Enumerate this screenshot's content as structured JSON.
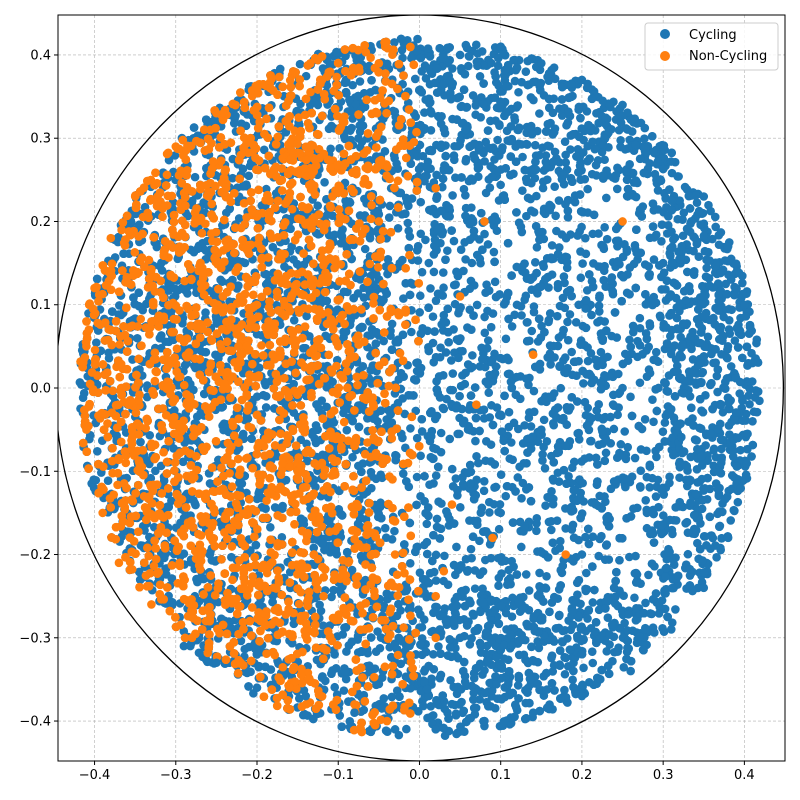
{
  "chart_data": {
    "type": "scatter",
    "title": "",
    "xlabel": "",
    "ylabel": "",
    "xlim": [
      -0.445,
      0.45
    ],
    "ylim": [
      -0.448,
      0.448
    ],
    "grid": true,
    "grid_style": "dashed",
    "legend_placement": "top-right",
    "x_ticks": [
      -0.4,
      -0.3,
      -0.2,
      -0.1,
      0.0,
      0.1,
      0.2,
      0.3,
      0.4
    ],
    "x_tick_labels": [
      "−0.4",
      "−0.3",
      "−0.2",
      "−0.1",
      "0.0",
      "0.1",
      "0.2",
      "0.3",
      "0.4"
    ],
    "y_ticks": [
      -0.4,
      -0.3,
      -0.2,
      -0.1,
      0.0,
      0.1,
      0.2,
      0.3,
      0.4
    ],
    "y_tick_labels": [
      "−0.4",
      "−0.3",
      "−0.2",
      "−0.1",
      "0.0",
      "0.1",
      "0.2",
      "0.3",
      "0.4"
    ],
    "boundary_circle": {
      "center": [
        0,
        0
      ],
      "radius": 0.448,
      "color": "#000000"
    },
    "series": [
      {
        "name": "Cycling",
        "color": "#1f77b4",
        "region": "disk radius ≈0.42, mostly x > 0 (whole right half plus lower-left edge)",
        "points": [
          [
            0.05,
            0.4
          ],
          [
            0.1,
            0.41
          ],
          [
            0.15,
            0.39
          ],
          [
            0.2,
            0.37
          ],
          [
            0.25,
            0.34
          ],
          [
            0.3,
            0.29
          ],
          [
            0.35,
            0.23
          ],
          [
            0.38,
            0.17
          ],
          [
            0.4,
            0.1
          ],
          [
            0.41,
            0.03
          ],
          [
            0.41,
            -0.04
          ],
          [
            0.4,
            -0.11
          ],
          [
            0.38,
            -0.18
          ],
          [
            0.35,
            -0.24
          ],
          [
            0.31,
            -0.29
          ],
          [
            0.26,
            -0.34
          ],
          [
            0.2,
            -0.37
          ],
          [
            0.14,
            -0.39
          ],
          [
            0.08,
            -0.4
          ],
          [
            0.02,
            -0.41
          ],
          [
            -0.03,
            -0.41
          ],
          [
            -0.08,
            -0.39
          ],
          [
            -0.14,
            -0.37
          ],
          [
            -0.2,
            -0.36
          ],
          [
            -0.25,
            -0.33
          ],
          [
            -0.29,
            -0.31
          ],
          [
            0.08,
            0.2
          ],
          [
            0.12,
            0.1
          ],
          [
            0.15,
            -0.05
          ],
          [
            0.2,
            -0.2
          ],
          [
            0.25,
            0.0
          ],
          [
            0.3,
            0.15
          ],
          [
            0.05,
            -0.3
          ],
          [
            0.18,
            0.28
          ],
          [
            0.28,
            -0.15
          ],
          [
            0.1,
            -0.15
          ]
        ]
      },
      {
        "name": "Non-Cycling",
        "color": "#ff7f0e",
        "region": "mostly x < 0, left half of the disk",
        "points": [
          [
            -0.41,
            0.05
          ],
          [
            -0.41,
            -0.05
          ],
          [
            -0.4,
            0.12
          ],
          [
            -0.39,
            -0.15
          ],
          [
            -0.38,
            0.18
          ],
          [
            -0.37,
            -0.21
          ],
          [
            -0.35,
            0.23
          ],
          [
            -0.33,
            -0.26
          ],
          [
            -0.3,
            0.29
          ],
          [
            -0.28,
            -0.3
          ],
          [
            -0.25,
            0.33
          ],
          [
            -0.22,
            -0.33
          ],
          [
            -0.2,
            0.36
          ],
          [
            -0.16,
            -0.36
          ],
          [
            -0.12,
            0.37
          ],
          [
            -0.08,
            -0.38
          ],
          [
            -0.05,
            0.39
          ],
          [
            -0.04,
            -0.4
          ],
          [
            -0.2,
            0.1
          ],
          [
            -0.15,
            -0.1
          ],
          [
            -0.1,
            0.05
          ],
          [
            -0.05,
            0.2
          ],
          [
            -0.03,
            -0.2
          ],
          [
            0.02,
            0.24
          ],
          [
            0.08,
            0.2
          ],
          [
            0.25,
            0.2
          ],
          [
            0.18,
            -0.2
          ],
          [
            0.14,
            0.04
          ],
          [
            0.07,
            -0.02
          ],
          [
            0.05,
            0.11
          ],
          [
            0.04,
            -0.14
          ],
          [
            0.02,
            -0.25
          ],
          [
            0.03,
            -0.22
          ],
          [
            0.02,
            -0.3
          ],
          [
            0.09,
            -0.18
          ]
        ]
      }
    ]
  }
}
